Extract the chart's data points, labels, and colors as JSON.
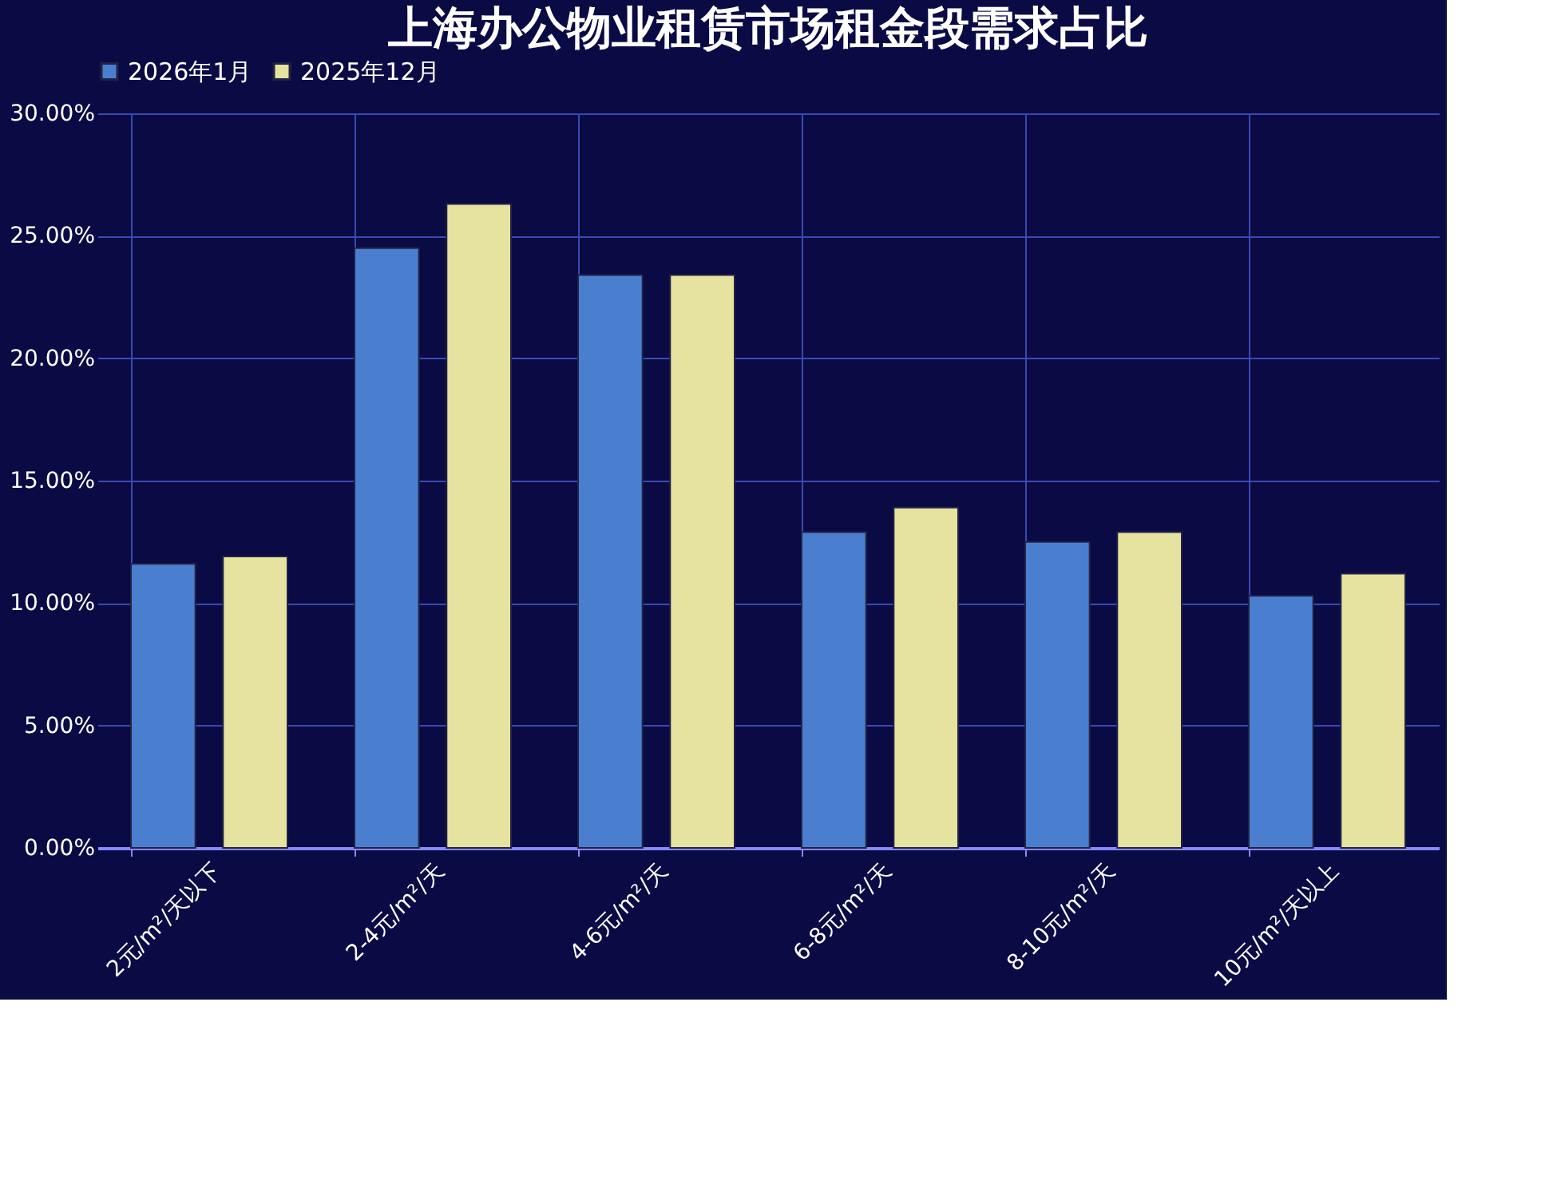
{
  "chart_data": {
    "type": "bar",
    "title": "上海办公物业租赁市场租金段需求占比",
    "categories": [
      "2元/m²/天以下",
      "2-4元/m²/天",
      "4-6元/m²/天",
      "6-8元/m²/天",
      "8-10元/m²/天",
      "10元/m²/天以上"
    ],
    "series": [
      {
        "name": "2026年1月",
        "color": "#4a7fd0",
        "values": [
          11.6,
          24.5,
          23.4,
          12.9,
          12.5,
          10.3
        ]
      },
      {
        "name": "2025年12月",
        "color": "#e6e2a0",
        "values": [
          11.9,
          26.3,
          23.4,
          13.9,
          12.9,
          11.2
        ]
      }
    ],
    "ylim": [
      0,
      30
    ],
    "yticks": [
      {
        "value": 0,
        "label": "0.00%"
      },
      {
        "value": 5,
        "label": "5.00%"
      },
      {
        "value": 10,
        "label": "10.00%"
      },
      {
        "value": 15,
        "label": "15.00%"
      },
      {
        "value": 20,
        "label": "20.00%"
      },
      {
        "value": 25,
        "label": "25.00%"
      },
      {
        "value": 30,
        "label": "30.00%"
      }
    ],
    "grid": true,
    "legend": "top"
  }
}
